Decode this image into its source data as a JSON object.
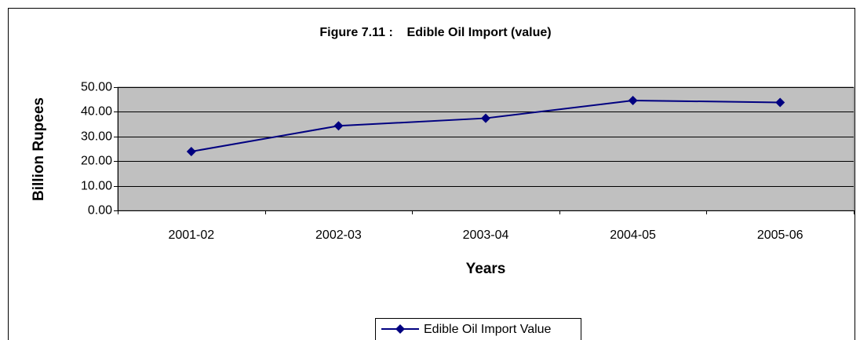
{
  "chart_data": {
    "type": "line",
    "title": "Figure 7.11 :    Edible Oil Import (value)",
    "x_label": "Years",
    "y_label": "Billion Rupees",
    "categories": [
      "2001-02",
      "2002-03",
      "2003-04",
      "2004-05",
      "2005-06"
    ],
    "series": [
      {
        "name": "Edible Oil Import Value",
        "color": "#000080",
        "values": [
          23.9,
          34.3,
          37.4,
          44.6,
          43.8
        ]
      }
    ],
    "ylim": [
      0,
      50
    ],
    "yticks": [
      {
        "value": 0,
        "label": "0.00"
      },
      {
        "value": 10,
        "label": "10.00"
      },
      {
        "value": 20,
        "label": "20.00"
      },
      {
        "value": 30,
        "label": "30.00"
      },
      {
        "value": 40,
        "label": "40.00"
      },
      {
        "value": 50,
        "label": "50.00"
      }
    ],
    "grid": true,
    "legend": "bottom"
  }
}
